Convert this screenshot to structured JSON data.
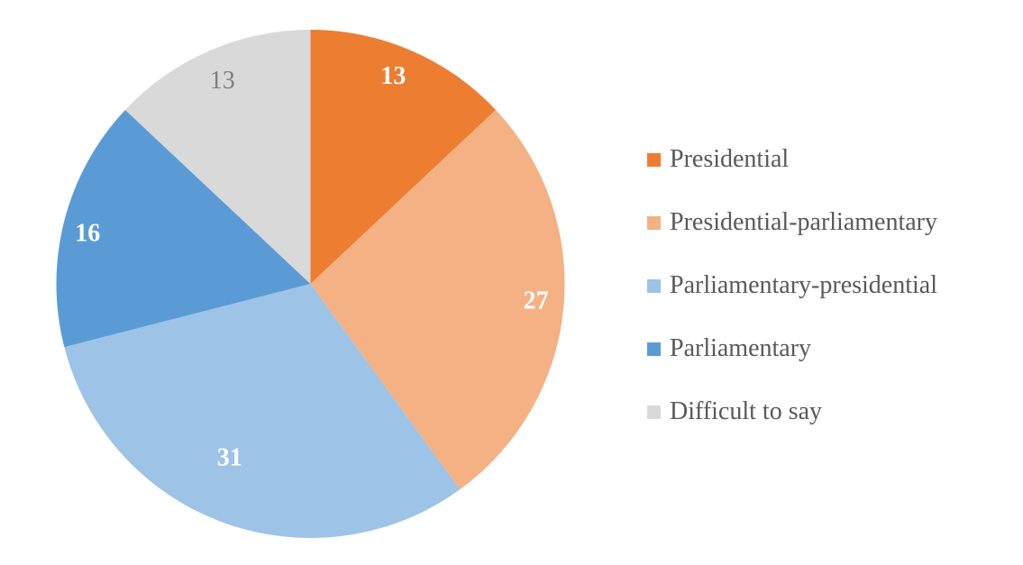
{
  "chart_data": {
    "type": "pie",
    "title": "",
    "start_angle_deg": 0,
    "direction": "clockwise",
    "legend_position": "right",
    "background_color": "#FFFFFF",
    "legend_text_color": "#595959",
    "categories": [
      "Presidential",
      "Presidential-parliamentary",
      "Parliamentary-presidential",
      "Parliamentary",
      "Difficult to say"
    ],
    "values": [
      13,
      27,
      31,
      16,
      13
    ],
    "slices": [
      {
        "label": "Presidential",
        "value": 13,
        "color": "#ED7D31",
        "data_label": "13",
        "data_label_color": "#FFFFFF",
        "data_label_bold": true
      },
      {
        "label": "Presidential-parliamentary",
        "value": 27,
        "color": "#F4B183",
        "data_label": "27",
        "data_label_color": "#FFFFFF",
        "data_label_bold": true
      },
      {
        "label": "Parliamentary-presidential",
        "value": 31,
        "color": "#9DC3E6",
        "data_label": "31",
        "data_label_color": "#FFFFFF",
        "data_label_bold": true
      },
      {
        "label": "Parliamentary",
        "value": 16,
        "color": "#5B9BD5",
        "data_label": "16",
        "data_label_color": "#FFFFFF",
        "data_label_bold": true
      },
      {
        "label": "Difficult to say",
        "value": 13,
        "color": "#D9D9D9",
        "data_label": "13",
        "data_label_color": "#7F7F7F",
        "data_label_bold": false
      }
    ]
  }
}
